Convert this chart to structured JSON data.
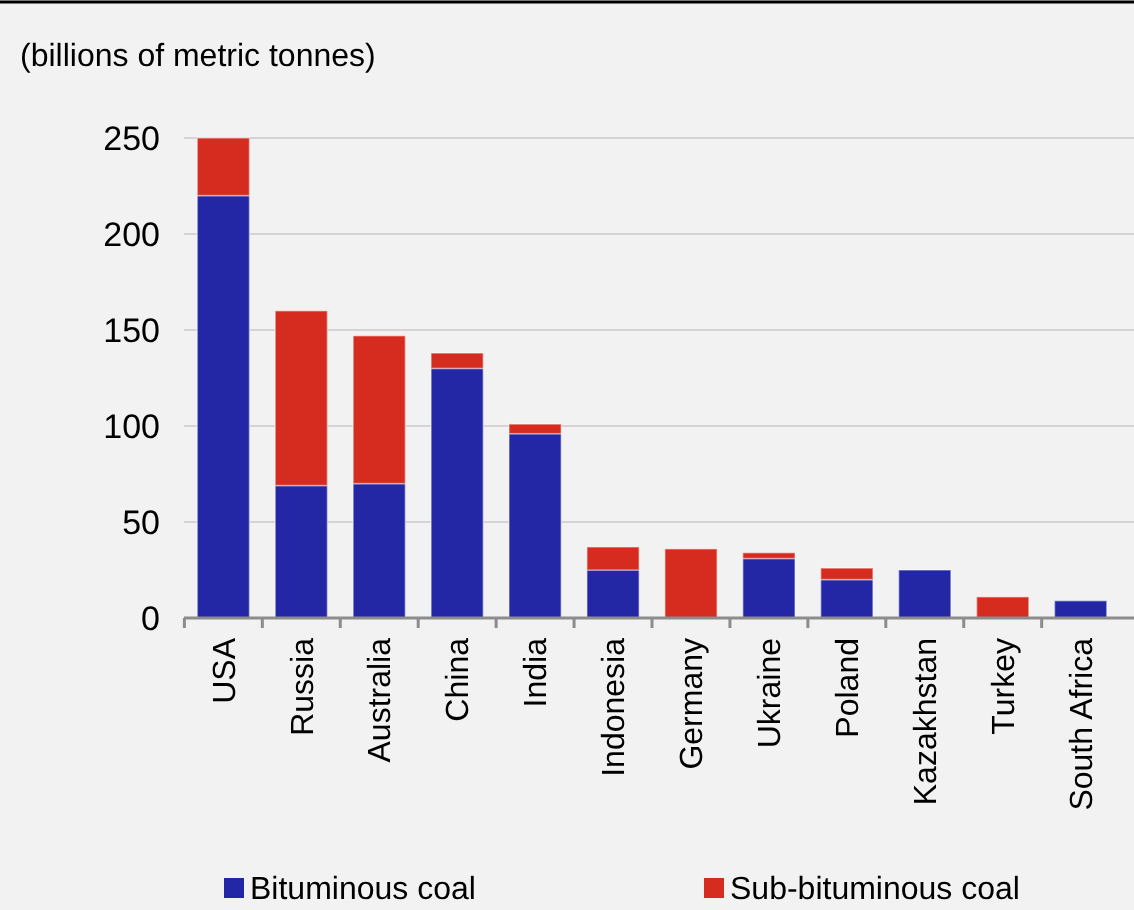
{
  "chart_data": {
    "type": "bar",
    "stacked": true,
    "ylabel": "(billions of metric tonnes)",
    "categories": [
      "USA",
      "Russia",
      "Australia",
      "China",
      "India",
      "Indonesia",
      "Germany",
      "Ukraine",
      "Poland",
      "Kazakhstan",
      "Turkey",
      "South Africa"
    ],
    "series": [
      {
        "name": "Bituminous coal",
        "color": "#2327a6",
        "values": [
          220,
          69,
          70,
          130,
          96,
          25,
          0,
          31,
          20,
          25,
          0,
          9
        ]
      },
      {
        "name": "Sub-bituminous coal",
        "color": "#d62b1f",
        "values": [
          30,
          91,
          77,
          8,
          5,
          12,
          36,
          3,
          6,
          0,
          11,
          0
        ]
      }
    ],
    "ylim": [
      0,
      250
    ],
    "yticks": [
      0,
      50,
      100,
      150,
      200,
      250
    ],
    "grid": "y",
    "legend": "bottom"
  }
}
